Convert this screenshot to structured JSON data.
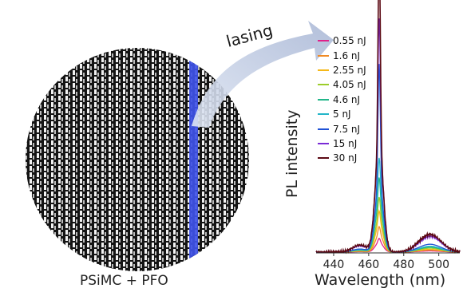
{
  "micrograph": {
    "caption": "PSiMC + PFO"
  },
  "annotation": {
    "arrow_label": "lasing",
    "arrow_color": "#aab8d6",
    "stripe_color": "#3f52e8"
  },
  "chart_data": {
    "type": "line",
    "xlabel": "Wavelength (nm)",
    "ylabel": "PL intensity",
    "xlim": [
      430,
      512
    ],
    "x_ticks": [
      440,
      460,
      480,
      500
    ],
    "y_ticks_shown": false,
    "grid": false,
    "legend_placement": "top-left",
    "peak_nm": 466,
    "series": [
      {
        "name": "0.55 nJ",
        "color": "#e0218a",
        "peak": 0.02,
        "wide": 0.05,
        "tail": 0.006
      },
      {
        "name": "1.6 nJ",
        "color": "#f08a24",
        "peak": 0.04,
        "wide": 0.09,
        "tail": 0.01
      },
      {
        "name": "2.55 nJ",
        "color": "#f5b81a",
        "peak": 0.07,
        "wide": 0.14,
        "tail": 0.014
      },
      {
        "name": "4.05 nJ",
        "color": "#9ccd2a",
        "peak": 0.1,
        "wide": 0.18,
        "tail": 0.02
      },
      {
        "name": "4.6 nJ",
        "color": "#22b68a",
        "peak": 0.14,
        "wide": 0.24,
        "tail": 0.025
      },
      {
        "name": "5 nJ",
        "color": "#23b5c8",
        "peak": 0.18,
        "wide": 0.3,
        "tail": 0.03
      },
      {
        "name": "7.5 nJ",
        "color": "#1f52d6",
        "peak": 0.6,
        "wide": 0.36,
        "tail": 0.04
      },
      {
        "name": "15 nJ",
        "color": "#7a2bd6",
        "peak": 0.63,
        "wide": 0.56,
        "tail": 0.08
      },
      {
        "name": "30 nJ",
        "color": "#5c0a14",
        "peak": 1.0,
        "wide": 0.54,
        "tail": 0.09
      }
    ]
  }
}
